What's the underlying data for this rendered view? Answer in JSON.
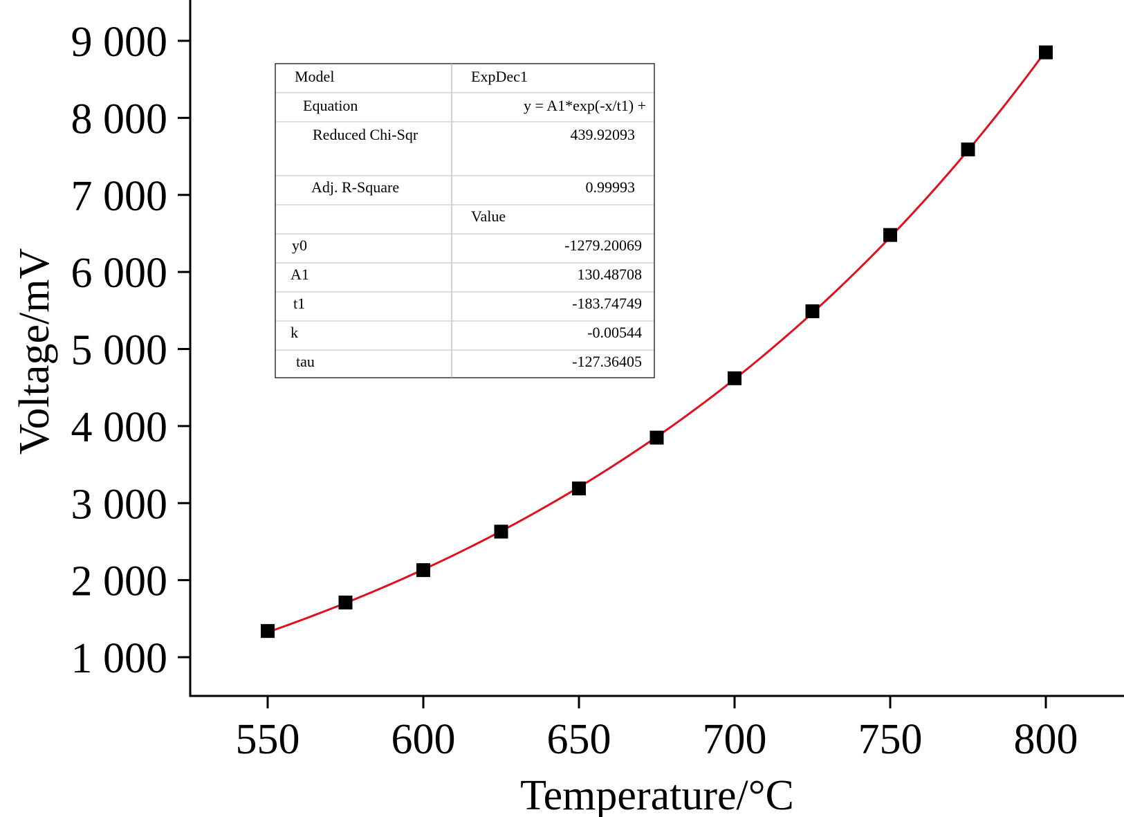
{
  "chart_data": {
    "type": "scatter",
    "xlabel": "Temperature/°C",
    "ylabel": "Voltage/mV",
    "xlim": [
      525,
      850
    ],
    "ylim": [
      500,
      9500
    ],
    "x_ticks": [
      550,
      600,
      650,
      700,
      750,
      800
    ],
    "x_tick_labels": [
      "550",
      "600",
      "650",
      "700",
      "750",
      "800"
    ],
    "y_ticks": [
      1000,
      2000,
      3000,
      4000,
      5000,
      6000,
      7000,
      8000,
      9000
    ],
    "y_tick_labels": [
      "1 000",
      "2 000",
      "3 000",
      "4 000",
      "5 000",
      "6 000",
      "7 000",
      "8 000",
      "9 000"
    ],
    "grid": false,
    "series": [
      {
        "kind": "points",
        "marker": "square",
        "color": "#000000",
        "x": [
          550,
          575,
          600,
          625,
          650,
          675,
          700,
          725,
          750,
          775,
          800
        ],
        "y": [
          1340,
          1710,
          2130,
          2630,
          3190,
          3850,
          4620,
          5490,
          6480,
          7590,
          8850
        ]
      },
      {
        "kind": "fit",
        "color": "#e0101e",
        "model": {
          "y0": -1279.20069,
          "A1": 130.48708,
          "t1": -183.74749
        },
        "x_range": [
          550,
          800
        ]
      }
    ],
    "fit_table": {
      "rows": [
        {
          "label": "Model",
          "value": "ExpDec1"
        },
        {
          "label": "Equation",
          "value": "y = A1*exp(-x/t1) +"
        },
        {
          "label": "Reduced Chi-Sqr",
          "value": "439.92093"
        },
        {
          "label": "Adj. R-Square",
          "value": "0.99993"
        },
        {
          "label": "",
          "value": "Value"
        },
        {
          "label": "y0",
          "value": "-1279.20069"
        },
        {
          "label": "A1",
          "value": "130.48708"
        },
        {
          "label": "t1",
          "value": "-183.74749"
        },
        {
          "label": "k",
          "value": "-0.00544"
        },
        {
          "label": "tau",
          "value": "-127.36405"
        }
      ]
    }
  }
}
